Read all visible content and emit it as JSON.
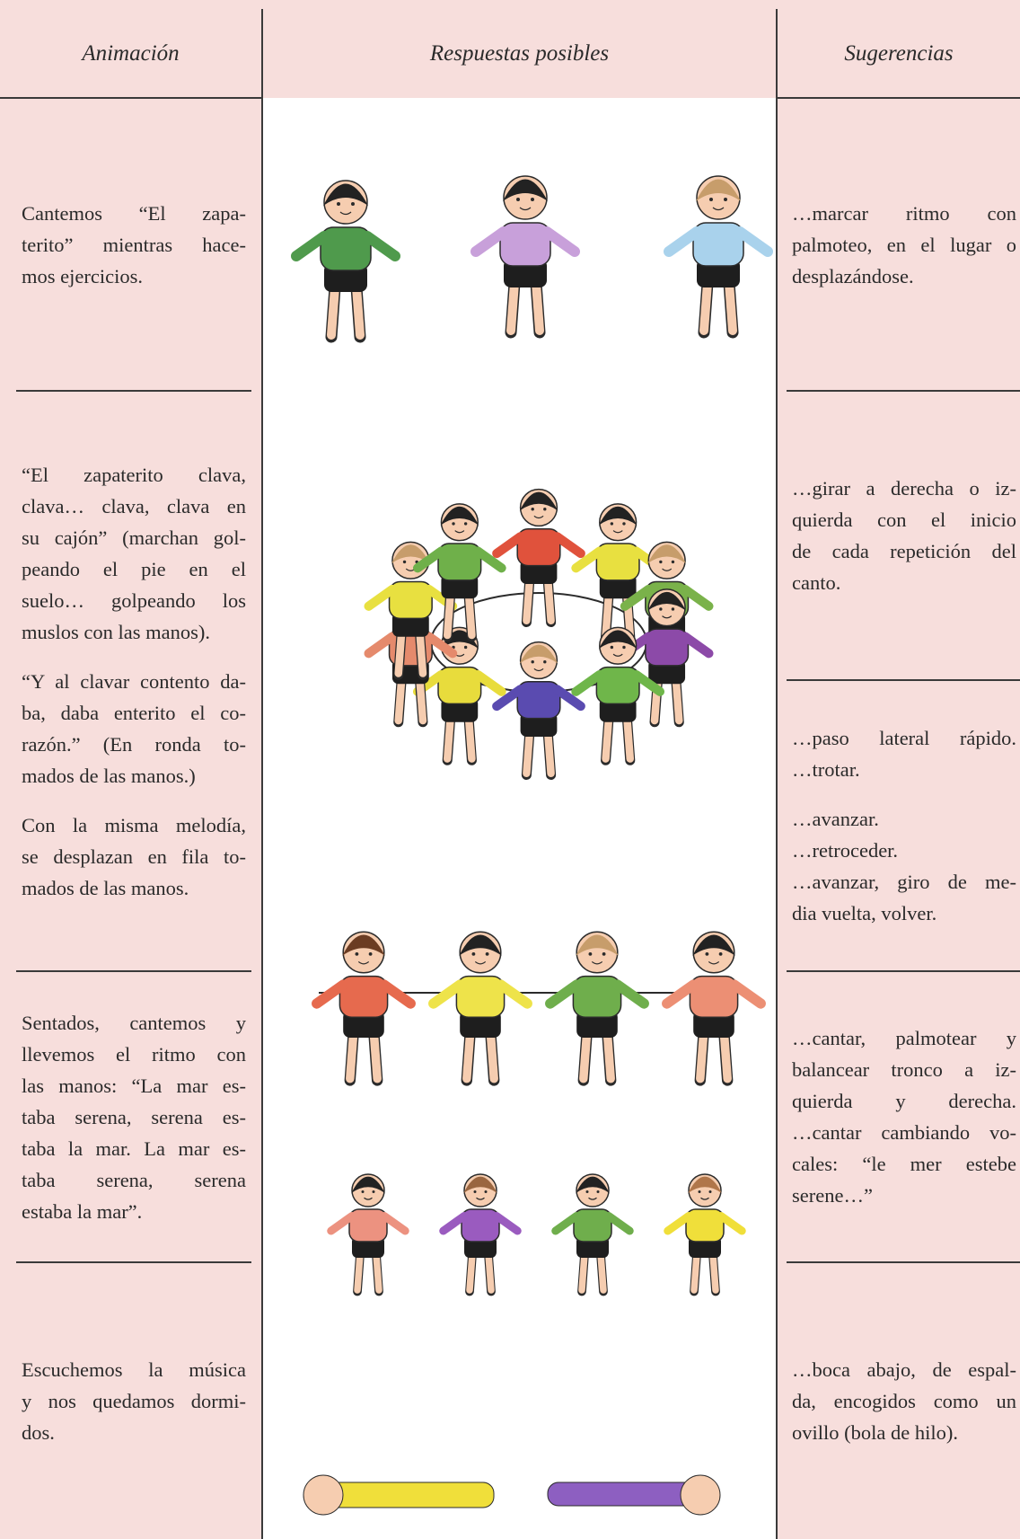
{
  "header": {
    "columns": [
      "Animación",
      "Respuestas posibles",
      "Sugerencias"
    ]
  },
  "animacion": [
    [
      [
        "Cantemos “El zapa-",
        "terito” mientras hace-",
        "mos ejercicios."
      ]
    ],
    [
      [
        "“El zapaterito clava,",
        "clava… clava, clava en",
        "su cajón” (marchan gol-",
        "peando el pie en el",
        "suelo… golpeando los",
        "muslos con las manos)."
      ],
      [
        "“Y al clavar contento da-",
        "ba, daba enterito el co-",
        "razón.” (En ronda to-",
        "mados de las manos.)"
      ],
      [
        "Con la misma melodía,",
        "se desplazan en fila to-",
        "mados de las manos."
      ]
    ],
    [
      [
        "Sentados, cantemos y",
        "llevemos el ritmo con",
        "las manos: “La mar es-",
        "taba serena, serena es-",
        "taba la mar. La mar es-",
        "taba serena, serena",
        "estaba la mar”."
      ]
    ],
    [
      [
        "Escuchemos la música",
        "y nos quedamos dormi-",
        "dos."
      ]
    ]
  ],
  "sugerencias": [
    [
      [
        "…marcar ritmo con",
        "palmoteo, en el lugar o",
        "desplazándose."
      ]
    ],
    [
      [
        "…girar a derecha o iz-",
        "quierda con el inicio",
        "de cada repetición del",
        "canto."
      ]
    ],
    [
      [
        "…paso lateral rápido.",
        "…trotar."
      ],
      [
        "…avanzar.",
        "…retroceder.",
        "…avanzar, giro de me-",
        "dia vuelta, volver."
      ]
    ],
    [
      [
        "…cantar, palmotear y",
        "balancear tronco a iz-",
        "quierda y derecha.",
        "…cantar cambiando vo-",
        "cales: “le mer estebe",
        "serene…”"
      ]
    ],
    [
      [
        "…boca abajo, de espal-",
        "da, encogidos como un",
        "ovillo (bola de hilo)."
      ]
    ]
  ]
}
